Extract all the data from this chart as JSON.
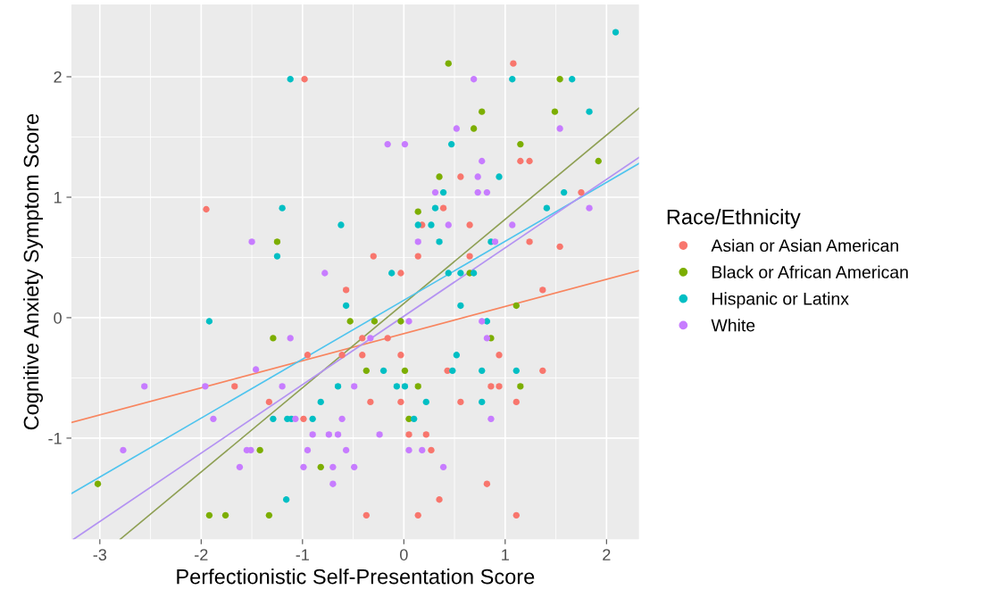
{
  "chart_data": {
    "type": "scatter",
    "xlabel": "Perfectionistic Self-Presentation Score",
    "ylabel": "Cognitive Anxiety Symptom Score",
    "legend_title": "Race/Ethnicity",
    "legend": "right",
    "grid": true,
    "marker": "circle",
    "xlim": [
      -3.28,
      2.32
    ],
    "ylim": [
      -1.84,
      2.6
    ],
    "xticks": [
      -3,
      -2,
      -1,
      0,
      1,
      2
    ],
    "yticks": [
      -1,
      0,
      1,
      2
    ],
    "series": [
      {
        "name": "Asian or Asian American",
        "color": "#f8766d",
        "x": [
          -0.98,
          -1.95,
          1.08,
          1.15,
          1.24,
          0.56,
          1.75,
          0.39,
          0.18,
          0.65,
          1.24,
          1.54,
          -0.3,
          0.14,
          0.65,
          -0.03,
          -0.57,
          -0.95,
          -0.61,
          -1.67,
          -1.33,
          -0.99,
          1.37,
          -0.41,
          -0.16,
          -0.41,
          -0.03,
          0.94,
          0.43,
          1.37,
          0.86,
          0.94,
          -0.33,
          -0.03,
          0.56,
          1.11,
          0.05,
          0.22,
          0.27,
          0.82,
          0.35,
          -0.37,
          0.14,
          1.11
        ],
        "values": [
          1.98,
          0.9,
          2.11,
          1.3,
          1.3,
          1.17,
          1.04,
          0.91,
          0.77,
          0.77,
          0.63,
          0.59,
          0.51,
          0.51,
          0.51,
          0.37,
          0.23,
          -0.31,
          -0.31,
          -0.57,
          -0.7,
          -0.84,
          0.23,
          -0.17,
          -0.17,
          -0.31,
          -0.31,
          -0.31,
          -0.44,
          -0.44,
          -0.57,
          -0.57,
          -0.7,
          -0.7,
          -0.7,
          -0.7,
          -0.97,
          -0.97,
          -1.1,
          -1.38,
          -1.51,
          -1.64,
          -1.64,
          -1.64
        ]
      },
      {
        "name": "Black or African American",
        "color": "#7cae00",
        "x": [
          0.44,
          1.54,
          0.77,
          1.49,
          0.69,
          1.15,
          1.92,
          0.35,
          0.14,
          0.65,
          -1.25,
          -0.53,
          -1.29,
          -1.42,
          -3.02,
          -0.82,
          -1.92,
          -1.76,
          -1.33,
          1.11,
          -0.29,
          -0.03,
          0.86,
          -0.37,
          0.01,
          0.14,
          1.15,
          0.05
        ],
        "values": [
          2.11,
          1.98,
          1.71,
          1.71,
          1.57,
          1.44,
          1.3,
          1.17,
          0.88,
          0.37,
          0.63,
          -0.03,
          -0.17,
          -1.1,
          -1.38,
          -1.24,
          -1.64,
          -1.64,
          -1.64,
          0.1,
          -0.03,
          -0.03,
          -0.17,
          -0.44,
          -0.44,
          -0.57,
          -0.57,
          -0.84
        ]
      },
      {
        "name": "Hispanic or Latinx",
        "color": "#00bfc4",
        "x": [
          1.07,
          1.66,
          2.09,
          1.83,
          0.47,
          0.94,
          0.39,
          1.58,
          0.31,
          1.41,
          0.14,
          0.27,
          0.35,
          0.86,
          -0.12,
          0.44,
          0.56,
          0.69,
          -1.12,
          -1.2,
          -0.62,
          -1.25,
          -0.57,
          -1.92,
          -0.65,
          -0.82,
          -1.29,
          -1.15,
          -1.11,
          -0.9,
          -1.16,
          0.56,
          0.82,
          0.52,
          -0.2,
          0.48,
          0.77,
          1.11,
          -0.07,
          0.01,
          0.22,
          0.77,
          0.1
        ],
        "values": [
          1.98,
          1.98,
          2.37,
          1.71,
          1.44,
          1.17,
          1.04,
          1.04,
          0.91,
          0.91,
          0.77,
          0.77,
          0.63,
          0.63,
          0.37,
          0.37,
          0.37,
          0.37,
          1.98,
          0.91,
          0.77,
          0.51,
          0.1,
          -0.03,
          -0.57,
          -0.7,
          -0.84,
          -0.84,
          -0.84,
          -0.84,
          -1.51,
          0.1,
          -0.03,
          -0.31,
          -0.44,
          -0.44,
          -0.44,
          -0.44,
          -0.57,
          -0.57,
          -0.7,
          -0.7,
          -0.84
        ]
      },
      {
        "name": "White",
        "color": "#c77cff",
        "x": [
          0.69,
          0.52,
          1.54,
          -0.16,
          0.01,
          0.77,
          0.73,
          0.31,
          0.73,
          0.82,
          1.83,
          0.44,
          1.07,
          0.14,
          0.9,
          -1.5,
          -0.78,
          -1.12,
          -1.46,
          -2.56,
          -1.96,
          -1.2,
          -0.49,
          -1.88,
          -1.07,
          -0.61,
          -0.9,
          -0.74,
          -0.65,
          -2.77,
          -1.55,
          -1.51,
          -0.95,
          -0.57,
          -1.62,
          -0.99,
          -0.7,
          -0.49,
          -0.7,
          0.05,
          0.77,
          -0.33,
          0.82,
          0.86,
          -0.24,
          0.05,
          0.18,
          0.39
        ],
        "values": [
          1.98,
          1.57,
          1.57,
          1.44,
          1.44,
          1.3,
          1.17,
          1.04,
          1.04,
          1.04,
          0.91,
          0.77,
          0.77,
          0.63,
          0.63,
          0.63,
          0.37,
          -0.17,
          -0.43,
          -0.57,
          -0.57,
          -0.57,
          -0.57,
          -0.84,
          -0.84,
          -0.84,
          -0.97,
          -0.97,
          -0.97,
          -1.1,
          -1.1,
          -1.1,
          -1.1,
          -1.1,
          -1.24,
          -1.24,
          -1.24,
          -1.24,
          -1.38,
          -0.03,
          -0.03,
          -0.17,
          -0.17,
          -0.84,
          -0.97,
          -1.1,
          -1.1,
          -1.24
        ]
      },
      {
        "type": "line",
        "marker": "none",
        "color": "#f8855f",
        "x": [
          -3.28,
          2.32
        ],
        "values": [
          -0.87,
          0.39
        ]
      },
      {
        "type": "line",
        "marker": "none",
        "color": "#8fa055",
        "x": [
          -2.8,
          2.32
        ],
        "values": [
          -1.84,
          1.74
        ]
      },
      {
        "type": "line",
        "marker": "none",
        "color": "#4fc4ee",
        "x": [
          -3.28,
          2.32
        ],
        "values": [
          -1.46,
          1.28
        ]
      },
      {
        "type": "line",
        "marker": "none",
        "color": "#b493f2",
        "x": [
          -3.26,
          2.32
        ],
        "values": [
          -1.84,
          1.33
        ]
      }
    ]
  }
}
